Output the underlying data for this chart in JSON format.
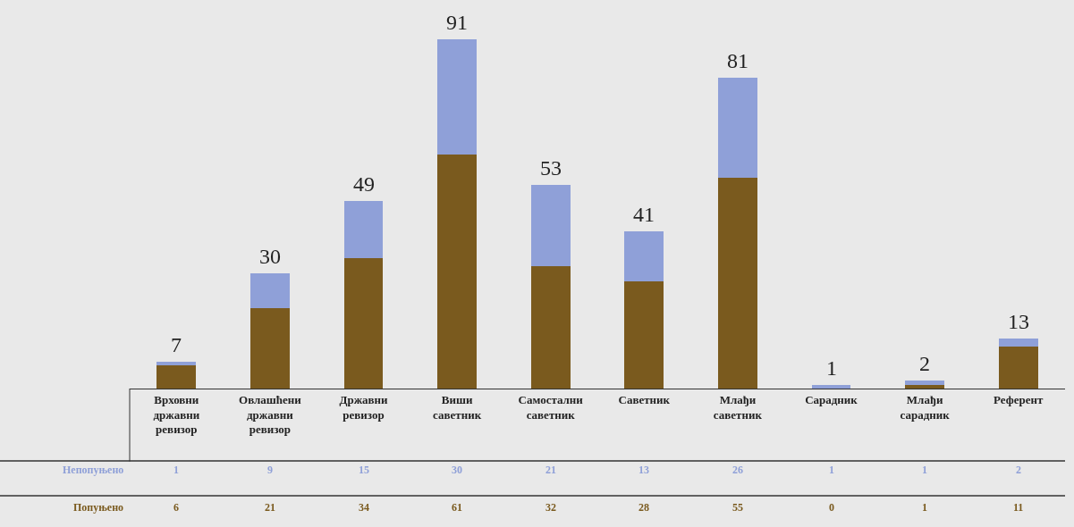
{
  "chart_data": {
    "type": "bar",
    "stacked": true,
    "data_labels": true,
    "legend": false,
    "categories": [
      "Врховни државни ревизор",
      "Овлашћени државни ревизор",
      "Државни ревизор",
      "Виши саветник",
      "Самостални саветник",
      "Саветник",
      "Млађи саветник",
      "Сарадник",
      "Млађи сарадник",
      "Референт"
    ],
    "series": [
      {
        "name": "Попуњено",
        "color": "#7a5a1e",
        "values": [
          6,
          21,
          34,
          61,
          32,
          28,
          55,
          0,
          1,
          11
        ]
      },
      {
        "name": "Непопуњено",
        "color": "#8fa0d8",
        "values": [
          1,
          9,
          15,
          30,
          21,
          13,
          26,
          1,
          1,
          2
        ]
      }
    ],
    "totals": [
      "7",
      "30",
      "49",
      "91",
      "53",
      "41",
      "81",
      "1",
      "2",
      "13"
    ]
  }
}
